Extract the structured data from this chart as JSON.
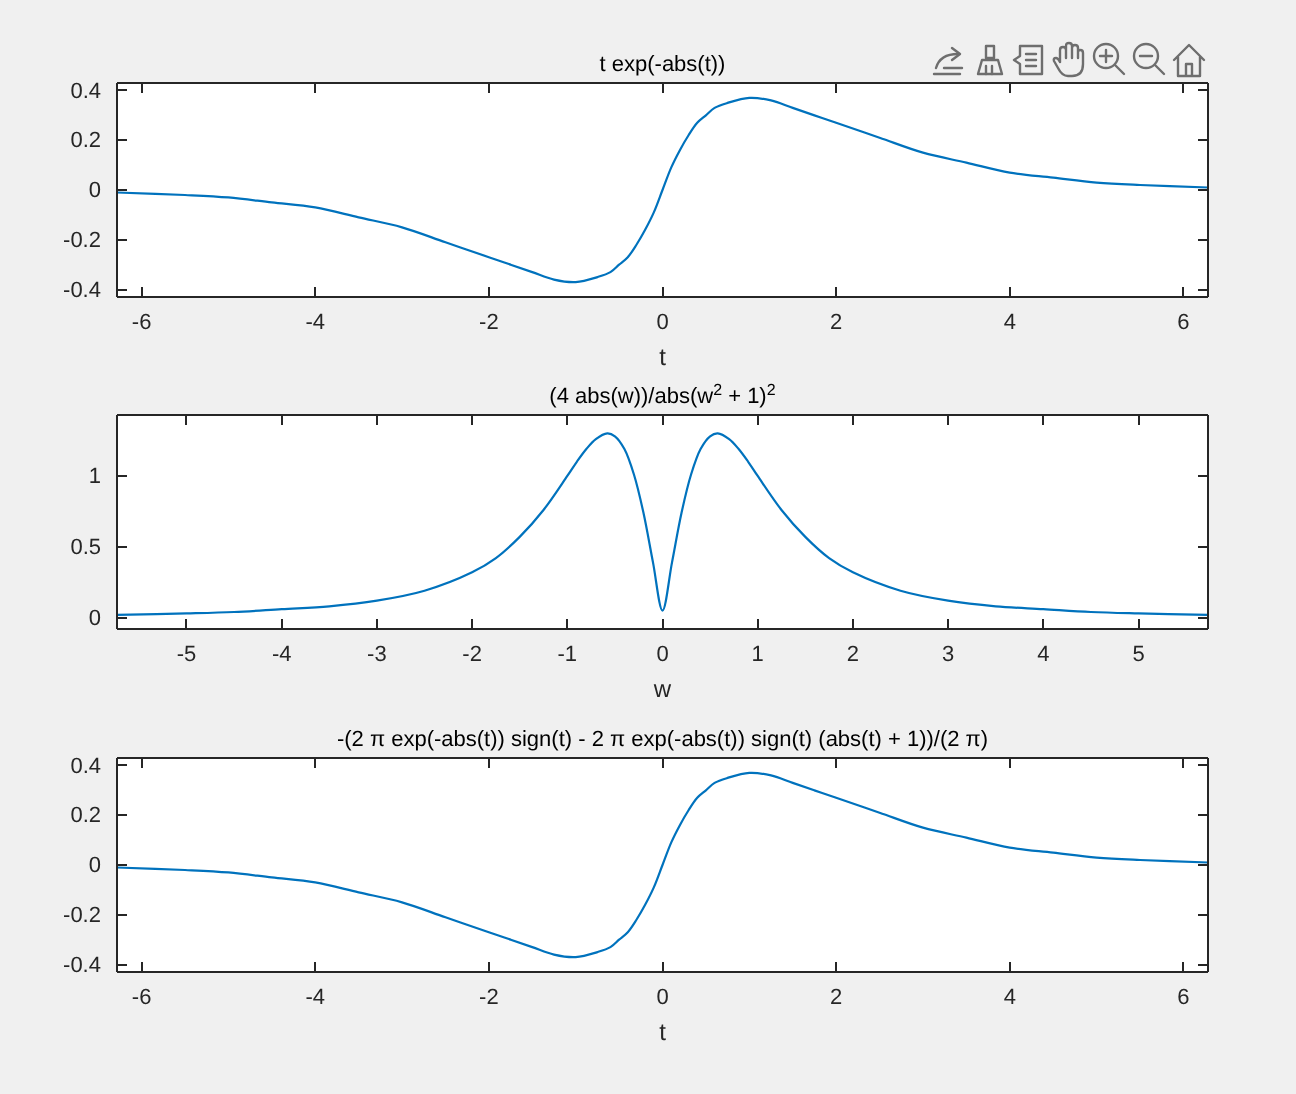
{
  "chart_data": [
    {
      "type": "line",
      "title": "t exp(-abs(t))",
      "xlabel": "t",
      "xlim": [
        -6.2832,
        6.2832
      ],
      "ylim": [
        -0.43,
        0.43
      ],
      "xticks": [
        -6,
        -4,
        -2,
        0,
        2,
        4,
        6
      ],
      "yticks": [
        -0.4,
        -0.2,
        0,
        0.2,
        0.4
      ],
      "series": [
        {
          "color": "#0072bd",
          "x": [
            -6.2832,
            -5.5,
            -5,
            -4.5,
            -4,
            -3.5,
            -3,
            -2.5,
            -2,
            -1.75,
            -1.5,
            -1.25,
            -1,
            -0.75,
            -0.6,
            -0.5,
            -0.4,
            -0.3,
            -0.2,
            -0.1,
            0,
            0.1,
            0.2,
            0.3,
            0.4,
            0.5,
            0.6,
            0.75,
            1,
            1.25,
            1.5,
            1.75,
            2,
            2.5,
            3,
            3.5,
            4,
            4.5,
            5,
            5.5,
            6.2832
          ],
          "values": [
            -0.01,
            -0.02,
            -0.03,
            -0.05,
            -0.07,
            -0.11,
            -0.15,
            -0.21,
            -0.27,
            -0.3,
            -0.33,
            -0.36,
            -0.37,
            -0.35,
            -0.33,
            -0.3,
            -0.27,
            -0.22,
            -0.16,
            -0.09,
            0,
            0.09,
            0.16,
            0.22,
            0.27,
            0.3,
            0.33,
            0.35,
            0.37,
            0.36,
            0.33,
            0.3,
            0.27,
            0.21,
            0.15,
            0.11,
            0.07,
            0.05,
            0.03,
            0.02,
            0.01
          ]
        }
      ]
    },
    {
      "type": "line",
      "title": "(4 abs(w))/abs(w$^{2}$ + 1)$^{2}$",
      "xlabel": "w",
      "xlim": [
        -5.73,
        5.73
      ],
      "ylim": [
        -0.08,
        1.43
      ],
      "xticks": [
        -5,
        -4,
        -3,
        -2,
        -1,
        0,
        1,
        2,
        3,
        4,
        5
      ],
      "yticks": [
        0,
        0.5,
        1
      ],
      "series": [
        {
          "color": "#0072bd",
          "x": [
            -5.73,
            -5,
            -4.5,
            -4,
            -3.5,
            -3,
            -2.5,
            -2,
            -1.75,
            -1.5,
            -1.25,
            -1,
            -0.9,
            -0.8,
            -0.7,
            -0.58,
            -0.5,
            -0.4,
            -0.3,
            -0.2,
            -0.1,
            0,
            0.1,
            0.2,
            0.3,
            0.4,
            0.5,
            0.58,
            0.7,
            0.8,
            0.9,
            1,
            1.25,
            1.5,
            1.75,
            2,
            2.5,
            3,
            3.5,
            4,
            4.5,
            5,
            5.73
          ],
          "values": [
            0.02,
            0.03,
            0.04,
            0.06,
            0.08,
            0.12,
            0.19,
            0.32,
            0.42,
            0.57,
            0.76,
            1.0,
            1.1,
            1.19,
            1.26,
            1.3,
            1.28,
            1.19,
            1.01,
            0.74,
            0.39,
            0.05,
            0.39,
            0.74,
            1.01,
            1.19,
            1.28,
            1.3,
            1.26,
            1.19,
            1.1,
            1.0,
            0.76,
            0.57,
            0.42,
            0.32,
            0.19,
            0.12,
            0.08,
            0.06,
            0.04,
            0.03,
            0.02
          ]
        }
      ]
    },
    {
      "type": "line",
      "title": "-(2 π exp(-abs(t)) sign(t) - 2 π exp(-abs(t)) sign(t) (abs(t) + 1))/(2 π)",
      "xlabel": "t",
      "xlim": [
        -6.2832,
        6.2832
      ],
      "ylim": [
        -0.43,
        0.43
      ],
      "xticks": [
        -6,
        -4,
        -2,
        0,
        2,
        4,
        6
      ],
      "yticks": [
        -0.4,
        -0.2,
        0,
        0.2,
        0.4
      ],
      "series": [
        {
          "color": "#0072bd",
          "x": [
            -6.2832,
            -5.5,
            -5,
            -4.5,
            -4,
            -3.5,
            -3,
            -2.5,
            -2,
            -1.75,
            -1.5,
            -1.25,
            -1,
            -0.75,
            -0.6,
            -0.5,
            -0.4,
            -0.3,
            -0.2,
            -0.1,
            0,
            0.1,
            0.2,
            0.3,
            0.4,
            0.5,
            0.6,
            0.75,
            1,
            1.25,
            1.5,
            1.75,
            2,
            2.5,
            3,
            3.5,
            4,
            4.5,
            5,
            5.5,
            6.2832
          ],
          "values": [
            -0.01,
            -0.02,
            -0.03,
            -0.05,
            -0.07,
            -0.11,
            -0.15,
            -0.21,
            -0.27,
            -0.3,
            -0.33,
            -0.36,
            -0.37,
            -0.35,
            -0.33,
            -0.3,
            -0.27,
            -0.22,
            -0.16,
            -0.09,
            0,
            0.09,
            0.16,
            0.22,
            0.27,
            0.3,
            0.33,
            0.35,
            0.37,
            0.36,
            0.33,
            0.3,
            0.27,
            0.21,
            0.15,
            0.11,
            0.07,
            0.05,
            0.03,
            0.02,
            0.01
          ]
        }
      ]
    }
  ]
}
